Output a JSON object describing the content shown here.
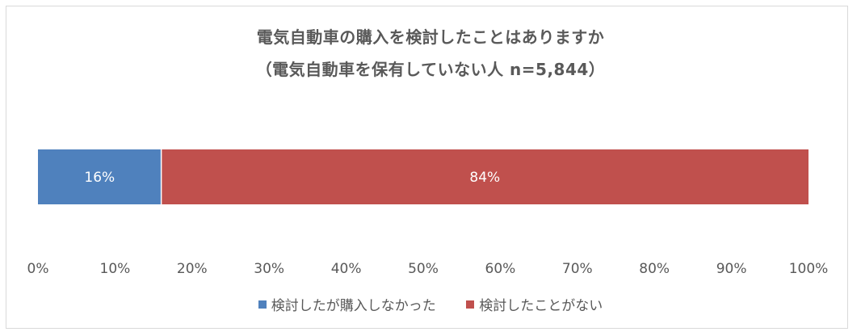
{
  "chart_data": {
    "type": "bar",
    "orientation": "horizontal",
    "stacked": true,
    "title": "電気自動車の購入を検討したことはありますか",
    "subtitle": "（電気自動車を保有していない人 n=5,844）",
    "categories": [
      ""
    ],
    "series": [
      {
        "name": "検討したが購入しなかった",
        "values": [
          16
        ],
        "label": "16%",
        "color": "#4f81bd"
      },
      {
        "name": "検討したことがない",
        "values": [
          84
        ],
        "label": "84%",
        "color": "#c0504d"
      }
    ],
    "xlim": [
      0,
      100
    ],
    "x_ticks": [
      "0%",
      "10%",
      "20%",
      "30%",
      "40%",
      "50%",
      "60%",
      "70%",
      "80%",
      "90%",
      "100%"
    ],
    "grid": false,
    "legend": "bottom"
  }
}
